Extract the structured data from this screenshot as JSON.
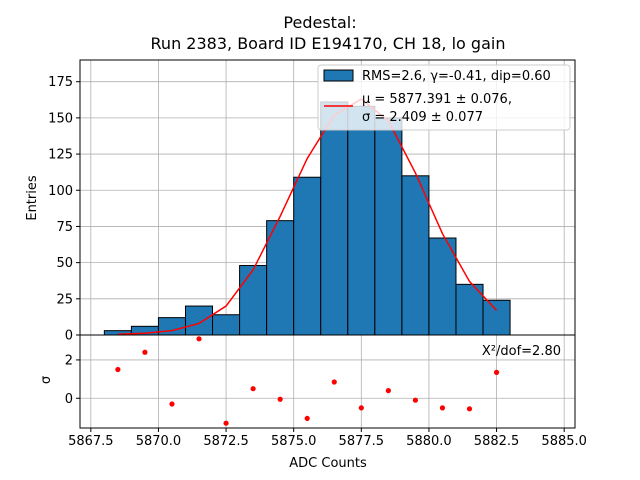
{
  "chart_data": {
    "title_line1": "Pedestal:",
    "title_line2": "Run 2383, Board ID E194170, CH 18, lo gain",
    "xlabel": "ADC Counts",
    "top": {
      "type": "bar",
      "ylabel": "Entries",
      "xlim": [
        5867.1,
        5885.4
      ],
      "ylim": [
        0,
        190
      ],
      "yticks": [
        0,
        25,
        50,
        75,
        100,
        125,
        150,
        175
      ],
      "bin_edges": [
        5868,
        5869,
        5870,
        5871,
        5872,
        5873,
        5874,
        5875,
        5876,
        5877,
        5878,
        5879,
        5880,
        5881,
        5882,
        5883
      ],
      "values": [
        3,
        6,
        12,
        20,
        14,
        48,
        79,
        109,
        161,
        158,
        150,
        110,
        67,
        35,
        24
      ],
      "fit_x": [
        5868.5,
        5869.5,
        5870.5,
        5871.5,
        5872.5,
        5873.5,
        5874.5,
        5875.5,
        5876.5,
        5877.5,
        5878.5,
        5879.5,
        5880.5,
        5881.5,
        5882.5
      ],
      "fit_y": [
        0.5,
        1.2,
        3,
        8,
        20,
        45,
        82,
        122,
        152,
        163,
        148,
        112,
        70,
        37,
        17
      ],
      "legend": {
        "hist_label": "RMS=2.6, γ=-0.41, dip=0.60",
        "fit_line1": "μ = 5877.391 ± 0.076,",
        "fit_line2": "σ = 2.409 ± 0.077",
        "hist_color": "#1f77b4",
        "fit_color": "#ff0000",
        "placement": "top-right"
      },
      "grid": true
    },
    "bottom": {
      "type": "scatter",
      "ylabel": "σ",
      "ylim": [
        -1.55,
        3.3
      ],
      "yticks": [
        0,
        2
      ],
      "x": [
        5868.5,
        5869.5,
        5870.5,
        5871.5,
        5872.5,
        5873.5,
        5874.5,
        5875.5,
        5876.5,
        5877.5,
        5878.5,
        5879.5,
        5880.5,
        5881.5,
        5882.5
      ],
      "y": [
        1.5,
        2.4,
        -0.3,
        3.1,
        -1.3,
        0.5,
        -0.05,
        -1.05,
        0.85,
        -0.5,
        0.4,
        -0.1,
        -0.5,
        -0.55,
        1.35
      ],
      "annotation": "X²/dof=2.80",
      "point_color": "#ff0000",
      "grid": true
    },
    "xticks": [
      5867.5,
      5870.0,
      5872.5,
      5875.0,
      5877.5,
      5880.0,
      5882.5,
      5885.0
    ],
    "xtick_labels": [
      "5867.5",
      "5870.0",
      "5872.5",
      "5875.0",
      "5877.5",
      "5880.0",
      "5882.5",
      "5885.0"
    ]
  }
}
